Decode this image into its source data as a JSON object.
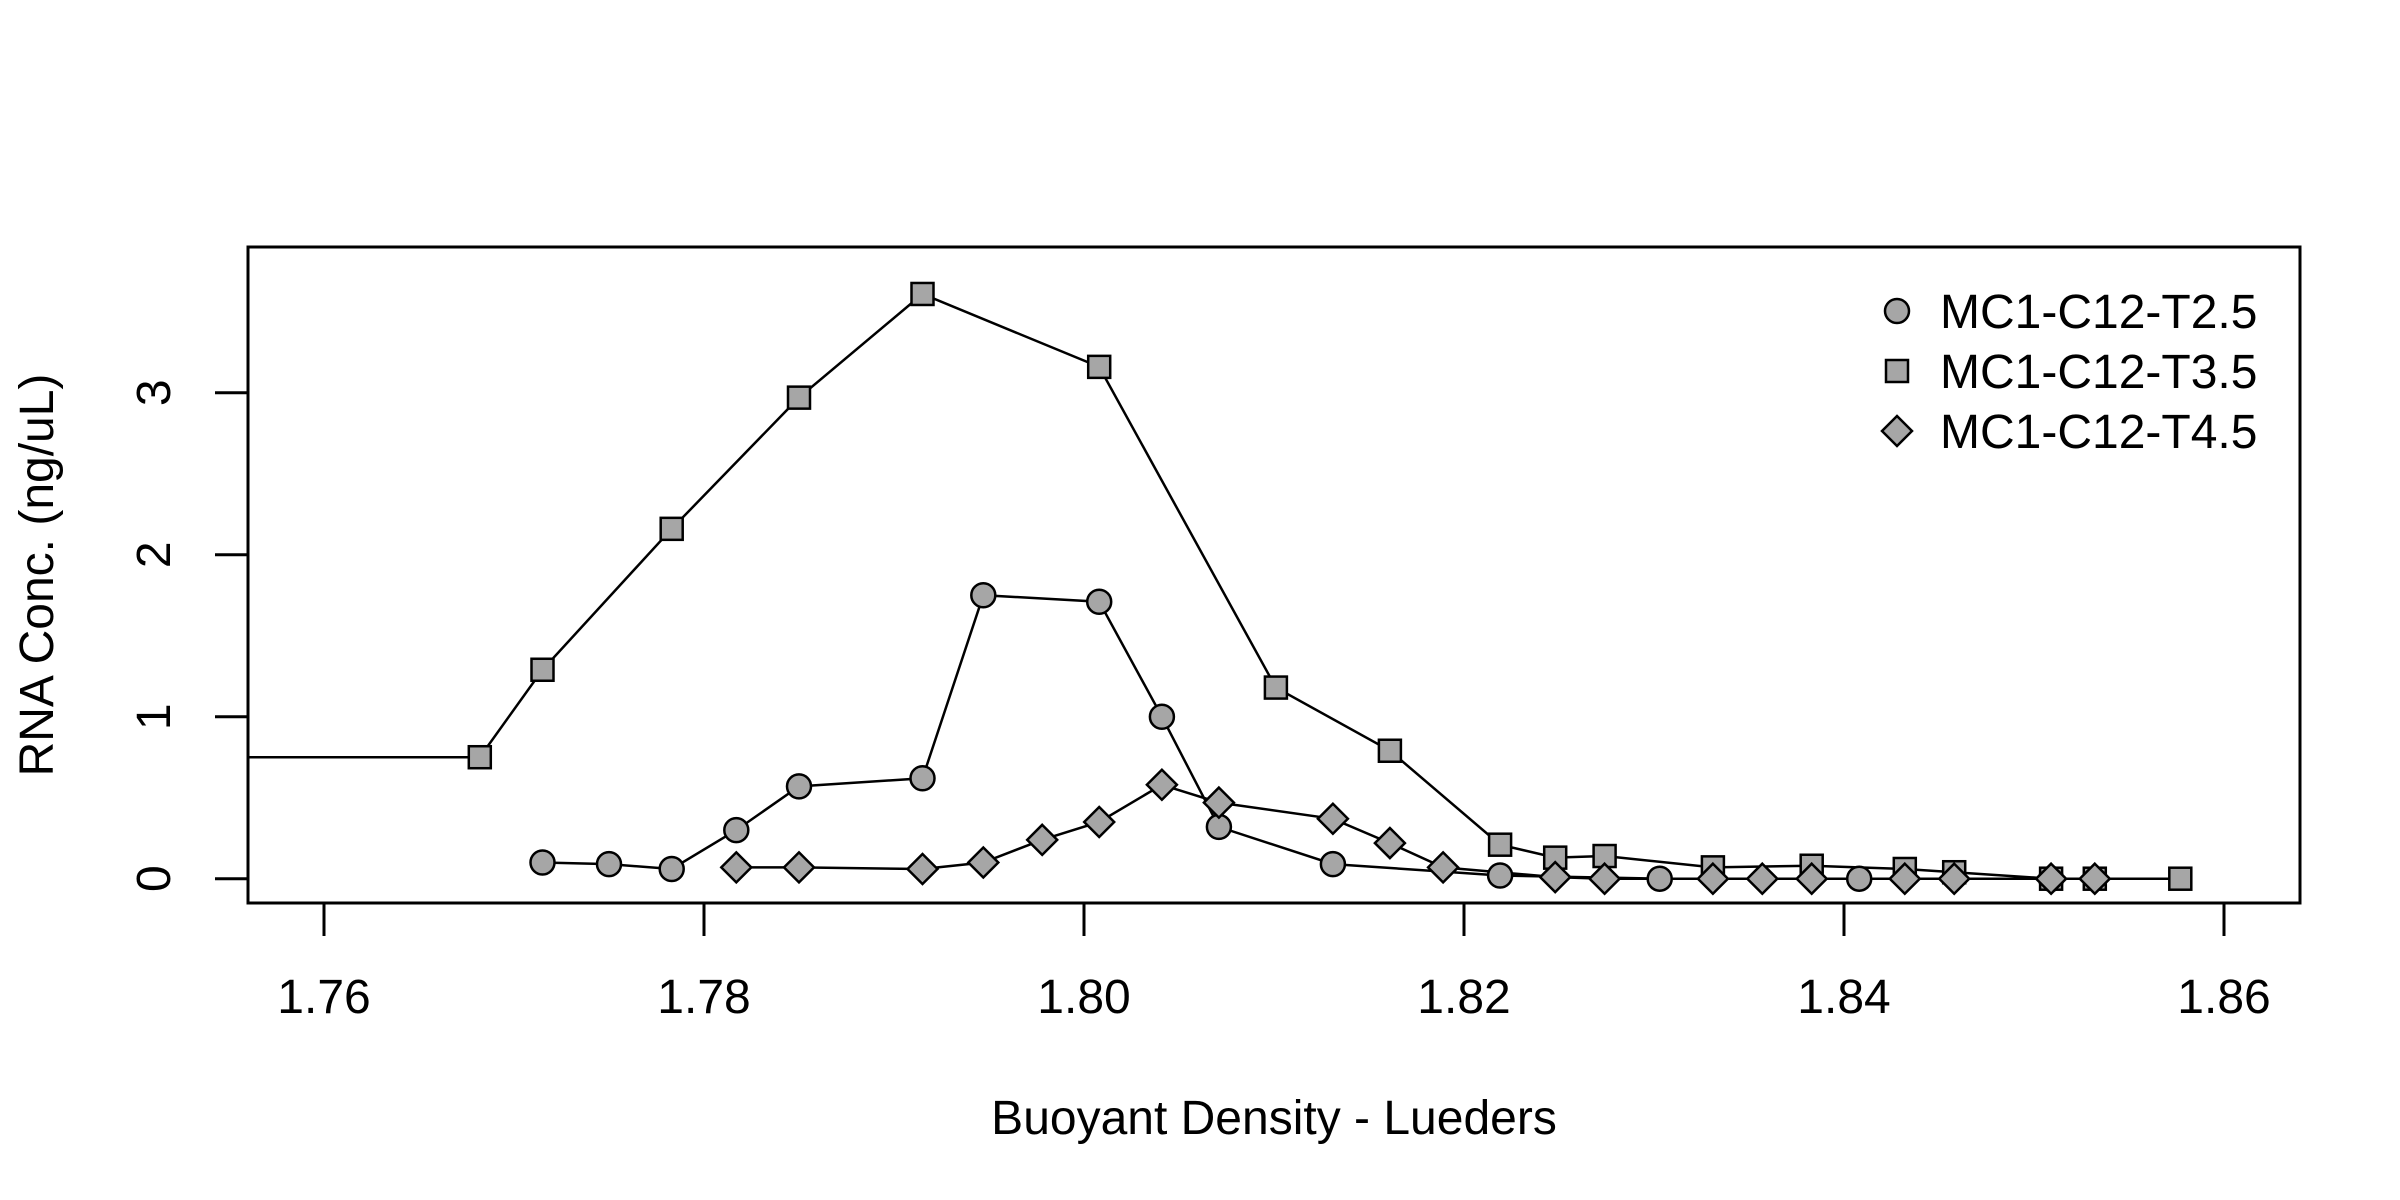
{
  "chart_data": {
    "type": "line",
    "title": "",
    "xlabel": "Buoyant Density - Lueders",
    "ylabel": "RNA Conc. (ng/uL)",
    "xlim": [
      1.756,
      1.864
    ],
    "ylim": [
      -0.15,
      3.9
    ],
    "x_ticks": [
      "1.76",
      "1.78",
      "1.80",
      "1.82",
      "1.84",
      "1.86"
    ],
    "x_tick_values": [
      1.76,
      1.78,
      1.8,
      1.82,
      1.84,
      1.86
    ],
    "y_ticks": [
      "0",
      "1",
      "2",
      "3"
    ],
    "y_tick_values": [
      0,
      1,
      2,
      3
    ],
    "grid": false,
    "legend_position": "top-right",
    "series": [
      {
        "name": "MC1-C12-T2.5",
        "marker": "circle",
        "color": "#a6a6a6",
        "points": [
          [
            1.7715,
            0.1
          ],
          [
            1.775,
            0.09
          ],
          [
            1.7783,
            0.06
          ],
          [
            1.7817,
            0.3
          ],
          [
            1.785,
            0.57
          ],
          [
            1.7915,
            0.62
          ],
          [
            1.7947,
            1.75
          ],
          [
            1.8008,
            1.71
          ],
          [
            1.8041,
            1.0
          ],
          [
            1.8071,
            0.32
          ],
          [
            1.8131,
            0.09
          ],
          [
            1.8219,
            0.02
          ],
          [
            1.8303,
            0.0
          ],
          [
            1.8408,
            0.0
          ],
          [
            1.8509,
            0.0
          ]
        ]
      },
      {
        "name": "MC1-C12-T3.5",
        "marker": "square",
        "color": "#a6a6a6",
        "points": [
          [
            1.756,
            0.75
          ],
          [
            1.7682,
            0.75
          ],
          [
            1.7715,
            1.29
          ],
          [
            1.7783,
            2.16
          ],
          [
            1.785,
            2.97
          ],
          [
            1.7915,
            3.61
          ],
          [
            1.8008,
            3.16
          ],
          [
            1.8101,
            1.18
          ],
          [
            1.8161,
            0.79
          ],
          [
            1.8219,
            0.21
          ],
          [
            1.8248,
            0.13
          ],
          [
            1.8274,
            0.14
          ],
          [
            1.8331,
            0.07
          ],
          [
            1.8383,
            0.08
          ],
          [
            1.8432,
            0.06
          ],
          [
            1.8458,
            0.04
          ],
          [
            1.8509,
            0.0
          ],
          [
            1.8532,
            0.0
          ],
          [
            1.8577,
            0.0
          ]
        ]
      },
      {
        "name": "MC1-C12-T4.5",
        "marker": "diamond",
        "color": "#a6a6a6",
        "points": [
          [
            1.7817,
            0.07
          ],
          [
            1.785,
            0.07
          ],
          [
            1.7915,
            0.06
          ],
          [
            1.7947,
            0.1
          ],
          [
            1.7978,
            0.24
          ],
          [
            1.8008,
            0.35
          ],
          [
            1.8041,
            0.58
          ],
          [
            1.8071,
            0.47
          ],
          [
            1.8131,
            0.37
          ],
          [
            1.8161,
            0.22
          ],
          [
            1.8189,
            0.07
          ],
          [
            1.8248,
            0.01
          ],
          [
            1.8274,
            0.0
          ],
          [
            1.8331,
            0.0
          ],
          [
            1.8357,
            0.0
          ],
          [
            1.8383,
            0.0
          ],
          [
            1.8432,
            0.0
          ],
          [
            1.8458,
            0.0
          ],
          [
            1.8509,
            0.0
          ],
          [
            1.8532,
            0.0
          ]
        ]
      }
    ]
  }
}
